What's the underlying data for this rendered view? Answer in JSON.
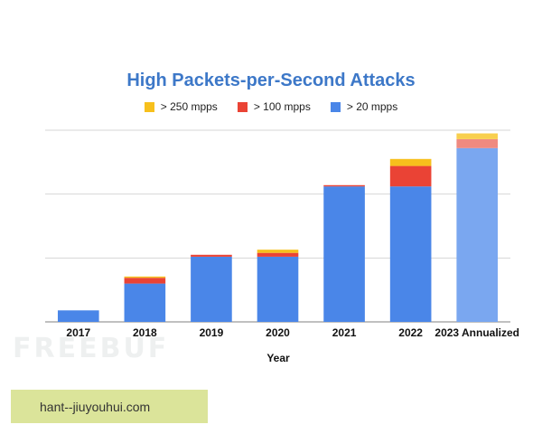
{
  "chart_data": {
    "type": "bar",
    "stacked": true,
    "title": "High Packets-per-Second Attacks",
    "xlabel": "Year",
    "ylabel": "",
    "categories": [
      "2017",
      "2018",
      "2019",
      "2020",
      "2021",
      "2022",
      "2023 Annualized"
    ],
    "series": [
      {
        "name": "> 20 mpps",
        "color": "#4a86e8",
        "values": [
          18,
          60,
          102,
          102,
          212,
          212,
          272
        ]
      },
      {
        "name": "> 100 mpps",
        "color": "#ea4335",
        "values": [
          0,
          9,
          3,
          6,
          2,
          32,
          14
        ]
      },
      {
        "name": "> 250 mpps",
        "color": "#f7c01c",
        "values": [
          0,
          2,
          0,
          5,
          0,
          11,
          9
        ]
      }
    ],
    "projected_category": "2023 Annualized",
    "projected_colors": [
      "#7aa7f0",
      "#ef8a80",
      "#f8cf4e"
    ],
    "ylim": [
      0,
      300
    ],
    "y_gridlines": [
      0,
      100,
      200,
      300
    ],
    "y_tick_labels_visible": false,
    "grid": true,
    "legend_position": "top"
  },
  "watermark": "FREEBUF",
  "caption": "hant--jiuyouhui.com"
}
